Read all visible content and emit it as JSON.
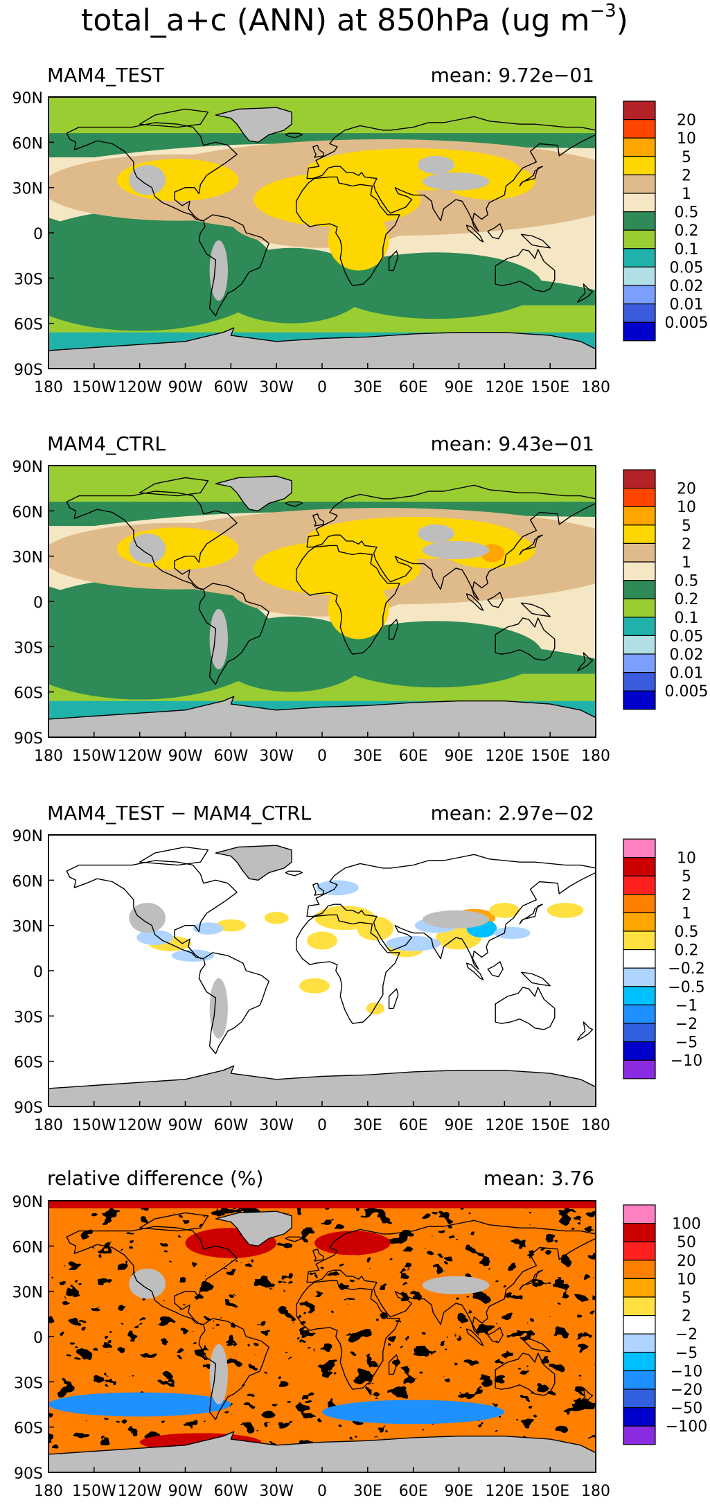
{
  "title": {
    "main": "total_a+c (ANN) at 850hPa (ug m",
    "superscript": "−3",
    "close": ")"
  },
  "axis_labels": {
    "lat": [
      "90N",
      "60N",
      "30N",
      "0",
      "30S",
      "60S",
      "90S"
    ],
    "lon": [
      "180",
      "150W",
      "120W",
      "90W",
      "60W",
      "30W",
      "0",
      "30E",
      "60E",
      "90E",
      "120E",
      "150E",
      "180"
    ]
  },
  "panels": [
    {
      "id": "test",
      "name": "MAM4_TEST",
      "mean_label": "mean:",
      "mean_value": "9.72e−01",
      "style": "abs_test",
      "legend": {
        "labels": [
          "20",
          "10",
          "5",
          "2",
          "1",
          "0.5",
          "0.2",
          "0.1",
          "0.05",
          "0.02",
          "0.01",
          "0.005"
        ],
        "colors": [
          "#b42227",
          "#ff4500",
          "#ffa500",
          "#ffd700",
          "#dfba8a",
          "#f5e6c4",
          "#2e8b57",
          "#9acd32",
          "#20b2aa",
          "#b0e0e6",
          "#7b9fff",
          "#3a5bdc",
          "#0000cd"
        ]
      }
    },
    {
      "id": "ctrl",
      "name": "MAM4_CTRL",
      "mean_label": "mean:",
      "mean_value": "9.43e−01",
      "style": "abs_ctrl",
      "legend": {
        "labels": [
          "20",
          "10",
          "5",
          "2",
          "1",
          "0.5",
          "0.2",
          "0.1",
          "0.05",
          "0.02",
          "0.01",
          "0.005"
        ],
        "colors": [
          "#b42227",
          "#ff4500",
          "#ffa500",
          "#ffd700",
          "#dfba8a",
          "#f5e6c4",
          "#2e8b57",
          "#9acd32",
          "#20b2aa",
          "#b0e0e6",
          "#7b9fff",
          "#3a5bdc",
          "#0000cd"
        ]
      }
    },
    {
      "id": "diff",
      "name": "MAM4_TEST − MAM4_CTRL",
      "mean_label": "mean:",
      "mean_value": "2.97e−02",
      "style": "diff",
      "legend": {
        "labels": [
          "10",
          "5",
          "2",
          "1",
          "0.5",
          "0.2",
          "−0.2",
          "−0.5",
          "−1",
          "−2",
          "−5",
          "−10"
        ],
        "colors": [
          "#ff80c0",
          "#cc0000",
          "#ff2020",
          "#ff7f00",
          "#ffa500",
          "#ffe040",
          "#ffffff",
          "#aed4ff",
          "#00bfff",
          "#1e90ff",
          "#3060e0",
          "#0000cd",
          "#8a2be2"
        ]
      }
    },
    {
      "id": "rel",
      "name": "relative difference (%)",
      "mean_label": "mean:",
      "mean_value": "3.76",
      "style": "rel",
      "legend": {
        "labels": [
          "100",
          "50",
          "20",
          "10",
          "5",
          "2",
          "−2",
          "−5",
          "−10",
          "−20",
          "−50",
          "−100"
        ],
        "colors": [
          "#ff80c0",
          "#cc0000",
          "#ff2020",
          "#ff7f00",
          "#ffa500",
          "#ffe040",
          "#ffffff",
          "#aed4ff",
          "#00bfff",
          "#1e90ff",
          "#3060e0",
          "#0000cd",
          "#8a2be2"
        ]
      }
    }
  ],
  "colors": {
    "missing": "#bebebe",
    "coast": "#000000",
    "frame": "#000000"
  }
}
